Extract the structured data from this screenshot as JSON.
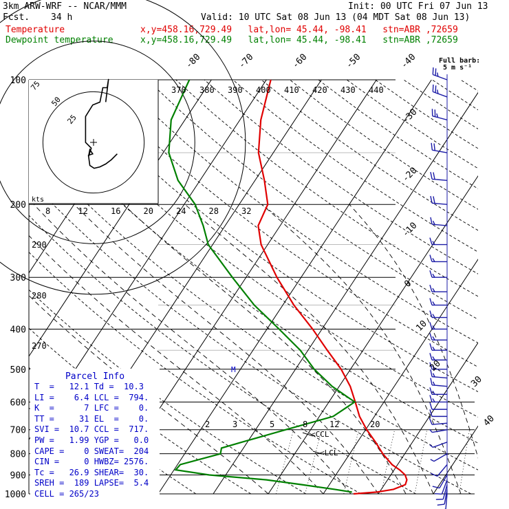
{
  "header": {
    "model": "3km ARW-WRF -- NCAR/MMM",
    "init": "Init: 00 UTC Fri 07 Jun 13",
    "fcst_label": "Fcst.",
    "fcst_value": "34 h",
    "valid": "Valid: 10 UTC Sat 08 Jun 13 (04 MDT Sat 08 Jun 13)",
    "temp_label": "Temperature",
    "temp_loc": "x,y=458.16,729.49   lat,lon= 45.44, -98.41   stn=ABR ,72659",
    "dew_label": "Dewpoint temperature",
    "dew_loc": "x,y=458.16,729.49   lat,lon= 45.44, -98.41   stn=ABR ,72659",
    "barb_title": "Full barb:",
    "barb_unit": "5 m s⁻¹"
  },
  "colors": {
    "temperature": "#e00000",
    "dewpoint": "#008000",
    "params": "#0000c8",
    "hodograph": "#000000",
    "barbs": "#1a1aa6"
  },
  "parcel": {
    "title": "Parcel Info",
    "rows": [
      "T  =   12.1 Td =  10.3",
      "LI =    6.4 LCL =  794.",
      "K  =      7 LFC =    0.",
      "TT =     31 EL  =    0.",
      "SVI =  10.7 CCL =  717.",
      "PW =   1.99 YGP =   0.0",
      "CAPE =    0 SWEAT=  204",
      "CIN =     0 HWBZ= 2576.",
      "Tc =   26.9 SHEAR=  30.",
      "SREH =  189 LAPSE=  5.4",
      "CELL = 265/23"
    ]
  },
  "chart_data": {
    "type": "line",
    "title": "",
    "xlabel": "",
    "ylabel": "",
    "y_scale": "log pressure",
    "pressure_ticks": [
      "100",
      "200",
      "300",
      "400",
      "500",
      "600",
      "700",
      "800",
      "900",
      "1000"
    ],
    "pressure_ylim": [
      1000,
      100
    ],
    "temperature_ticks": [
      "-80",
      "-70",
      "-60",
      "-50",
      "-40",
      "-30",
      "-20",
      "-10",
      "0",
      "10",
      "20",
      "30",
      "40"
    ],
    "theta_labels": [
      "370",
      "380",
      "390",
      "400",
      "410",
      "420",
      "430",
      "440"
    ],
    "theta_low_labels": [
      "290",
      "280",
      "270"
    ],
    "mixing_ratio_labels": [
      "2",
      "3",
      "5",
      "8",
      "12",
      "20"
    ],
    "hodo_speed_axis": [
      "8",
      "12",
      "16",
      "20",
      "24",
      "28",
      "32"
    ],
    "hodo_ring_labels": [
      "75",
      "50",
      "25"
    ],
    "hodo_units": "kts",
    "annotations": [
      "CCL",
      "LCL",
      "M"
    ],
    "series": [
      {
        "name": "Temperature",
        "color": "#e00000",
        "points": [
          {
            "p": 1000,
            "t": 5.5
          },
          {
            "p": 990,
            "t": 9.5
          },
          {
            "p": 975,
            "t": 12.2
          },
          {
            "p": 950,
            "t": 13.8
          },
          {
            "p": 925,
            "t": 13.5
          },
          {
            "p": 900,
            "t": 12.6
          },
          {
            "p": 875,
            "t": 11.0
          },
          {
            "p": 850,
            "t": 9.0
          },
          {
            "p": 800,
            "t": 6.0
          },
          {
            "p": 750,
            "t": 3.3
          },
          {
            "p": 700,
            "t": 0.2
          },
          {
            "p": 650,
            "t": -2.7
          },
          {
            "p": 600,
            "t": -5.2
          },
          {
            "p": 550,
            "t": -8.0
          },
          {
            "p": 500,
            "t": -11.7
          },
          {
            "p": 450,
            "t": -16.5
          },
          {
            "p": 400,
            "t": -21.7
          },
          {
            "p": 350,
            "t": -28.0
          },
          {
            "p": 300,
            "t": -34.4
          },
          {
            "p": 250,
            "t": -41.2
          },
          {
            "p": 225,
            "t": -44.0
          },
          {
            "p": 200,
            "t": -44.8
          },
          {
            "p": 175,
            "t": -48.3
          },
          {
            "p": 150,
            "t": -52.7
          },
          {
            "p": 125,
            "t": -56.2
          },
          {
            "p": 100,
            "t": -59.2
          }
        ]
      },
      {
        "name": "Dewpoint temperature",
        "color": "#008000",
        "points": [
          {
            "p": 990,
            "t": 5.0
          },
          {
            "p": 975,
            "t": 1.5
          },
          {
            "p": 950,
            "t": -5.0
          },
          {
            "p": 925,
            "t": -12.0
          },
          {
            "p": 900,
            "t": -23.0
          },
          {
            "p": 875,
            "t": -29.7
          },
          {
            "p": 850,
            "t": -29.5
          },
          {
            "p": 800,
            "t": -23.5
          },
          {
            "p": 775,
            "t": -24.0
          },
          {
            "p": 750,
            "t": -21.0
          },
          {
            "p": 700,
            "t": -14.5
          },
          {
            "p": 650,
            "t": -7.5
          },
          {
            "p": 600,
            "t": -5.3
          },
          {
            "p": 550,
            "t": -11.3
          },
          {
            "p": 500,
            "t": -16.6
          },
          {
            "p": 450,
            "t": -21.4
          },
          {
            "p": 400,
            "t": -27.8
          },
          {
            "p": 350,
            "t": -35.2
          },
          {
            "p": 300,
            "t": -42.5
          },
          {
            "p": 250,
            "t": -50.8
          },
          {
            "p": 225,
            "t": -54.0
          },
          {
            "p": 200,
            "t": -58.0
          },
          {
            "p": 175,
            "t": -64.0
          },
          {
            "p": 150,
            "t": -69.0
          },
          {
            "p": 125,
            "t": -72.5
          },
          {
            "p": 100,
            "t": -74.0
          }
        ]
      }
    ],
    "hodograph": [
      {
        "u": 9.0,
        "v": 14.0
      },
      {
        "u": 10.0,
        "v": 22.0
      },
      {
        "u": 9.5,
        "v": 19.0
      },
      {
        "u": 8.0,
        "v": 19.0
      },
      {
        "u": 7.0,
        "v": 14.0
      },
      {
        "u": 4.5,
        "v": 13.0
      },
      {
        "u": 2.0,
        "v": 9.0
      },
      {
        "u": 2.0,
        "v": 0.0
      },
      {
        "u": 4.0,
        "v": -2.0
      },
      {
        "u": 3.0,
        "v": -5.0
      },
      {
        "u": 3.5,
        "v": -2.5
      },
      {
        "u": 4.5,
        "v": -4.0
      },
      {
        "u": 3.0,
        "v": -4.5
      },
      {
        "u": 3.5,
        "v": -8.0
      },
      {
        "u": 5.0,
        "v": -9.0
      },
      {
        "u": 7.0,
        "v": -8.5
      },
      {
        "u": 9.0,
        "v": -7.5
      },
      {
        "u": 11.0,
        "v": -6.0
      },
      {
        "u": 13.0,
        "v": -4.0
      }
    ],
    "wind_barbs": [
      {
        "p": 100,
        "dir": 290,
        "spd": 25
      },
      {
        "p": 110,
        "dir": 290,
        "spd": 25
      },
      {
        "p": 125,
        "dir": 285,
        "spd": 25
      },
      {
        "p": 150,
        "dir": 280,
        "spd": 20
      },
      {
        "p": 175,
        "dir": 275,
        "spd": 20
      },
      {
        "p": 200,
        "dir": 275,
        "spd": 20
      },
      {
        "p": 225,
        "dir": 275,
        "spd": 15
      },
      {
        "p": 250,
        "dir": 270,
        "spd": 15
      },
      {
        "p": 275,
        "dir": 270,
        "spd": 15
      },
      {
        "p": 300,
        "dir": 270,
        "spd": 15
      },
      {
        "p": 325,
        "dir": 270,
        "spd": 15
      },
      {
        "p": 350,
        "dir": 270,
        "spd": 15
      },
      {
        "p": 375,
        "dir": 270,
        "spd": 15
      },
      {
        "p": 400,
        "dir": 270,
        "spd": 15
      },
      {
        "p": 425,
        "dir": 270,
        "spd": 15
      },
      {
        "p": 450,
        "dir": 270,
        "spd": 15
      },
      {
        "p": 475,
        "dir": 270,
        "spd": 15
      },
      {
        "p": 500,
        "dir": 270,
        "spd": 15
      },
      {
        "p": 525,
        "dir": 275,
        "spd": 15
      },
      {
        "p": 550,
        "dir": 275,
        "spd": 15
      },
      {
        "p": 575,
        "dir": 270,
        "spd": 15
      },
      {
        "p": 600,
        "dir": 270,
        "spd": 15
      },
      {
        "p": 625,
        "dir": 270,
        "spd": 10
      },
      {
        "p": 650,
        "dir": 270,
        "spd": 10
      },
      {
        "p": 675,
        "dir": 265,
        "spd": 10
      },
      {
        "p": 700,
        "dir": 260,
        "spd": 5
      },
      {
        "p": 750,
        "dir": 250,
        "spd": 5
      },
      {
        "p": 800,
        "dir": 240,
        "spd": 5
      },
      {
        "p": 850,
        "dir": 220,
        "spd": 10
      },
      {
        "p": 900,
        "dir": 210,
        "spd": 10
      },
      {
        "p": 925,
        "dir": 200,
        "spd": 10
      },
      {
        "p": 950,
        "dir": 195,
        "spd": 10
      },
      {
        "p": 975,
        "dir": 190,
        "spd": 10
      },
      {
        "p": 1000,
        "dir": 185,
        "spd": 5
      }
    ]
  }
}
